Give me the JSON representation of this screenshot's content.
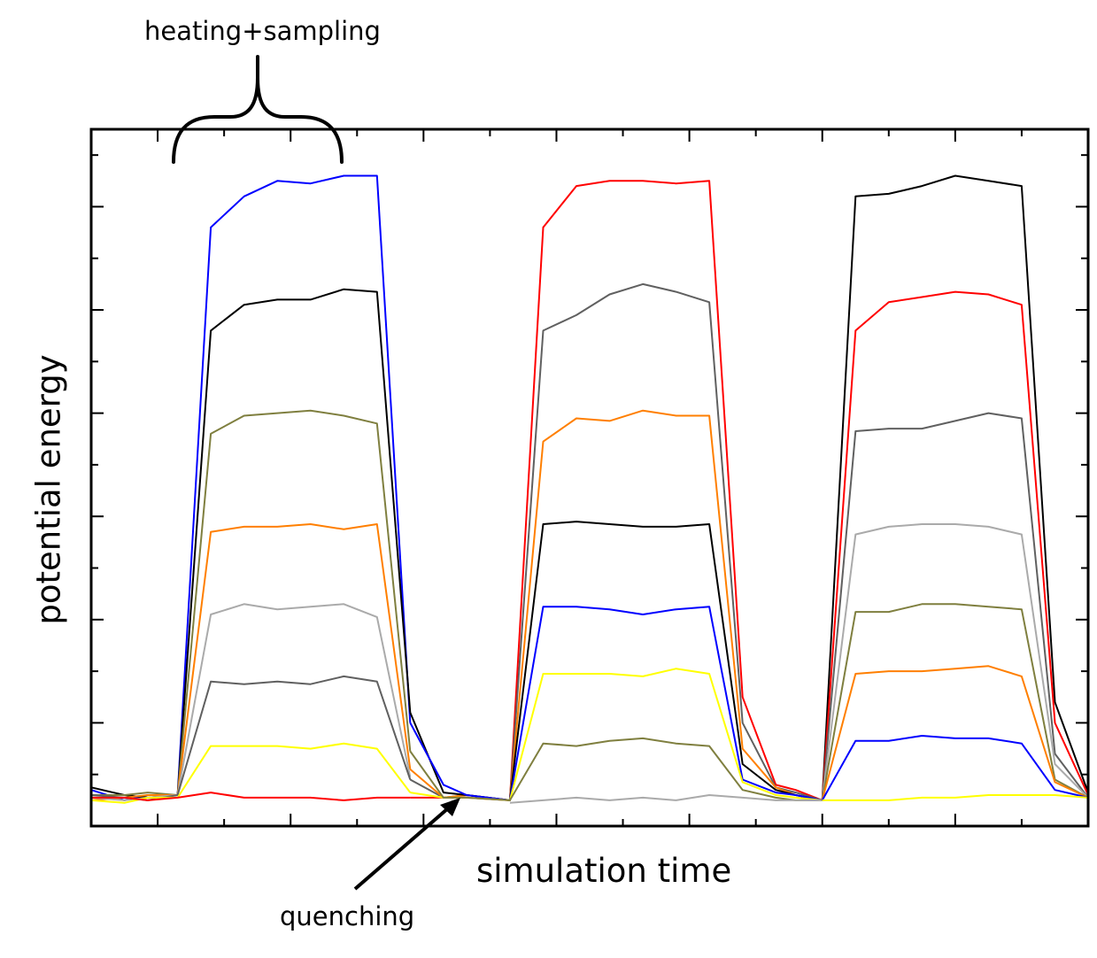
{
  "chart_data": {
    "type": "line",
    "title": "",
    "xlabel": "simulation time",
    "ylabel": "potential energy",
    "xlim": [
      0,
      30
    ],
    "ylim": [
      0,
      13.5
    ],
    "grid": false,
    "legend": "none",
    "tick_labels": "none",
    "annotations": {
      "heating": "heating+sampling",
      "quenching": "quenching"
    },
    "series": [
      {
        "color": "#0000ff",
        "x": [
          0,
          1,
          1.7,
          2.6,
          3.6,
          4.6,
          5.6,
          6.6,
          7.6,
          8.6,
          9.6
        ],
        "y": [
          0.7,
          0.5,
          0.6,
          0.6,
          11.6,
          12.2,
          12.5,
          12.45,
          12.6,
          12.6,
          2.0
        ]
      },
      {
        "color": "#000000",
        "x": [
          0,
          1,
          1.7,
          2.6,
          3.6,
          4.6,
          5.6,
          6.6,
          7.6,
          8.6,
          9.6
        ],
        "y": [
          0.75,
          0.6,
          0.55,
          0.6,
          9.6,
          10.1,
          10.2,
          10.2,
          10.4,
          10.35,
          2.2
        ]
      },
      {
        "color": "#7f7f3f",
        "x": [
          0,
          1,
          1.7,
          2.6,
          3.6,
          4.6,
          5.6,
          6.6,
          7.6,
          8.6,
          9.6
        ],
        "y": [
          0.6,
          0.6,
          0.65,
          0.6,
          7.6,
          7.95,
          8.0,
          8.05,
          7.95,
          7.8,
          1.45
        ]
      },
      {
        "color": "#ff7f00",
        "x": [
          0,
          1,
          1.7,
          2.6,
          3.6,
          4.6,
          5.6,
          6.6,
          7.6,
          8.6,
          9.6
        ],
        "y": [
          0.5,
          0.55,
          0.6,
          0.6,
          5.7,
          5.8,
          5.8,
          5.85,
          5.75,
          5.85,
          1.1
        ]
      },
      {
        "color": "#aaaaaa",
        "x": [
          0,
          1,
          1.7,
          2.6,
          3.6,
          4.6,
          5.6,
          6.6,
          7.6,
          8.6,
          9.6
        ],
        "y": [
          0.55,
          0.5,
          0.55,
          0.6,
          4.1,
          4.3,
          4.2,
          4.25,
          4.3,
          4.05,
          0.95
        ]
      },
      {
        "color": "#606060",
        "x": [
          0,
          1,
          1.7,
          2.6,
          3.6,
          4.6,
          5.6,
          6.6,
          7.6,
          8.6,
          9.6
        ],
        "y": [
          0.6,
          0.55,
          0.5,
          0.6,
          2.8,
          2.75,
          2.8,
          2.75,
          2.9,
          2.8,
          0.9
        ]
      },
      {
        "color": "#ffff00",
        "x": [
          0,
          1,
          1.7,
          2.6,
          3.6,
          4.6,
          5.6,
          6.6,
          7.6,
          8.6,
          9.6
        ],
        "y": [
          0.5,
          0.45,
          0.55,
          0.55,
          1.55,
          1.55,
          1.55,
          1.5,
          1.6,
          1.5,
          0.65
        ]
      },
      {
        "color": "#ff0000",
        "x": [
          0,
          1,
          1.7,
          2.6,
          3.6,
          4.6,
          5.6,
          6.6,
          7.6,
          8.6,
          9.6
        ],
        "y": [
          0.55,
          0.55,
          0.5,
          0.55,
          0.65,
          0.55,
          0.55,
          0.55,
          0.5,
          0.55,
          0.55
        ]
      },
      {
        "color": "#ff0000",
        "x": [
          9.6,
          10.6,
          11.3,
          12.6,
          13.6,
          14.6,
          15.6,
          16.6,
          17.6,
          18.6,
          19.6,
          20.6,
          21.2,
          22
        ],
        "y": [
          0.55,
          0.55,
          0.55,
          0.5,
          11.6,
          12.4,
          12.5,
          12.5,
          12.45,
          12.5,
          2.5,
          0.8,
          0.7,
          0.5
        ]
      },
      {
        "color": "#606060",
        "x": [
          9.6,
          10.6,
          11.3,
          12.6,
          13.6,
          14.6,
          15.6,
          16.6,
          17.6,
          18.6,
          19.6,
          20.6,
          21.2,
          22
        ],
        "y": [
          0.9,
          0.55,
          0.6,
          0.5,
          9.6,
          9.9,
          10.3,
          10.5,
          10.35,
          10.15,
          2.0,
          0.75,
          0.65,
          0.5
        ]
      },
      {
        "color": "#ff7f00",
        "x": [
          9.6,
          10.6,
          11.3,
          12.6,
          13.6,
          14.6,
          15.6,
          16.6,
          17.6,
          18.6,
          19.6,
          20.6,
          21.2,
          22
        ],
        "y": [
          1.1,
          0.55,
          0.6,
          0.5,
          7.45,
          7.9,
          7.85,
          8.05,
          7.95,
          7.95,
          1.5,
          0.75,
          0.6,
          0.5
        ]
      },
      {
        "color": "#000000",
        "x": [
          9.6,
          10.6,
          11.3,
          12.6,
          13.6,
          14.6,
          15.6,
          16.6,
          17.6,
          18.6,
          19.6,
          20.6,
          21.2,
          22
        ],
        "y": [
          2.2,
          0.65,
          0.6,
          0.5,
          5.85,
          5.9,
          5.85,
          5.8,
          5.8,
          5.85,
          1.2,
          0.7,
          0.6,
          0.5
        ]
      },
      {
        "color": "#0000ff",
        "x": [
          9.6,
          10.6,
          11.3,
          12.6,
          13.6,
          14.6,
          15.6,
          16.6,
          17.6,
          18.6,
          19.6,
          20.6,
          21.2,
          22
        ],
        "y": [
          2.0,
          0.8,
          0.6,
          0.5,
          4.25,
          4.25,
          4.2,
          4.1,
          4.2,
          4.25,
          0.9,
          0.65,
          0.6,
          0.5
        ]
      },
      {
        "color": "#ffff00",
        "x": [
          9.6,
          10.6,
          11.3,
          12.6,
          13.6,
          14.6,
          15.6,
          16.6,
          17.6,
          18.6,
          19.6,
          20.6,
          21.2,
          22
        ],
        "y": [
          0.65,
          0.55,
          0.55,
          0.5,
          2.95,
          2.95,
          2.95,
          2.9,
          3.05,
          2.95,
          0.85,
          0.6,
          0.55,
          0.5
        ]
      },
      {
        "color": "#7f7f3f",
        "x": [
          9.6,
          10.6,
          11.3,
          12.6,
          13.6,
          14.6,
          15.6,
          16.6,
          17.6,
          18.6,
          19.6,
          20.6,
          21.2,
          22
        ],
        "y": [
          1.45,
          0.55,
          0.55,
          0.5,
          1.6,
          1.55,
          1.65,
          1.7,
          1.6,
          1.55,
          0.7,
          0.55,
          0.5,
          0.5
        ]
      },
      {
        "color": "#aaaaaa",
        "x": [
          12.6,
          13.6,
          14.6,
          15.6,
          16.6,
          17.6,
          18.6,
          19.6,
          20.6,
          21.2,
          22
        ],
        "y": [
          0.45,
          0.5,
          0.55,
          0.5,
          0.55,
          0.5,
          0.6,
          0.55,
          0.5,
          0.5,
          0.5
        ]
      },
      {
        "color": "#000000",
        "x": [
          22,
          23,
          24,
          25,
          26,
          27,
          28,
          29,
          30
        ],
        "y": [
          0.5,
          12.2,
          12.25,
          12.4,
          12.6,
          12.5,
          12.4,
          2.4,
          0.65
        ]
      },
      {
        "color": "#ff0000",
        "x": [
          22,
          23,
          24,
          25,
          26,
          27,
          28,
          29,
          30
        ],
        "y": [
          0.5,
          9.6,
          10.15,
          10.25,
          10.35,
          10.3,
          10.1,
          2.0,
          0.6
        ]
      },
      {
        "color": "#606060",
        "x": [
          22,
          23,
          24,
          25,
          26,
          27,
          28,
          29,
          30
        ],
        "y": [
          0.5,
          7.65,
          7.7,
          7.7,
          7.85,
          8.0,
          7.9,
          1.4,
          0.55
        ]
      },
      {
        "color": "#aaaaaa",
        "x": [
          22,
          23,
          24,
          25,
          26,
          27,
          28,
          29,
          30
        ],
        "y": [
          0.5,
          5.65,
          5.8,
          5.85,
          5.85,
          5.8,
          5.65,
          1.2,
          0.55
        ]
      },
      {
        "color": "#7f7f3f",
        "x": [
          22,
          23,
          24,
          25,
          26,
          27,
          28,
          29,
          30
        ],
        "y": [
          0.5,
          4.15,
          4.15,
          4.3,
          4.3,
          4.25,
          4.2,
          0.9,
          0.55
        ]
      },
      {
        "color": "#ff7f00",
        "x": [
          22,
          23,
          24,
          25,
          26,
          27,
          28,
          29,
          30
        ],
        "y": [
          0.5,
          2.95,
          3.0,
          3.0,
          3.05,
          3.1,
          2.9,
          0.85,
          0.55
        ]
      },
      {
        "color": "#0000ff",
        "x": [
          22,
          23,
          24,
          25,
          26,
          27,
          28,
          29,
          30
        ],
        "y": [
          0.5,
          1.65,
          1.65,
          1.75,
          1.7,
          1.7,
          1.6,
          0.7,
          0.55
        ]
      },
      {
        "color": "#ffff00",
        "x": [
          22,
          23,
          24,
          25,
          26,
          27,
          28,
          29,
          30
        ],
        "y": [
          0.5,
          0.5,
          0.5,
          0.55,
          0.55,
          0.6,
          0.6,
          0.6,
          0.55
        ]
      }
    ]
  }
}
